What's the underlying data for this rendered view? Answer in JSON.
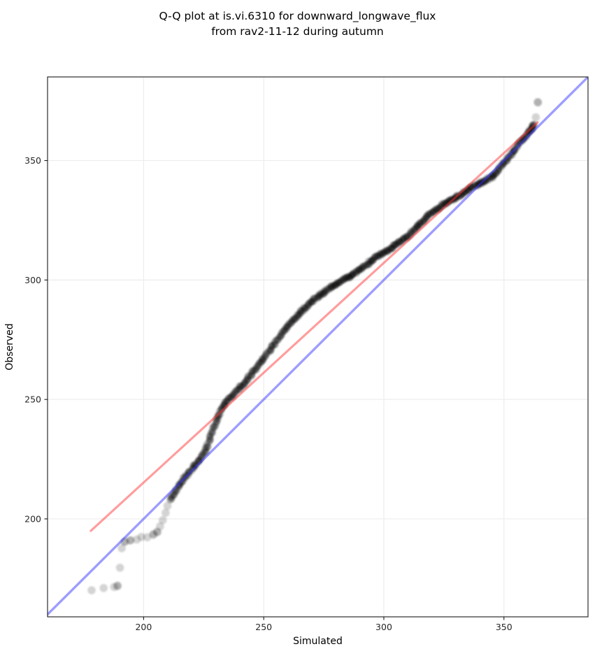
{
  "title": {
    "line1": "Q-Q plot at is.vi.6310 for downward_longwave_flux",
    "line2": "from rav2-11-12 during autumn"
  },
  "chart_data": {
    "type": "scatter",
    "title": "Q-Q plot at is.vi.6310 for downward_longwave_flux from rav2-11-12 during autumn",
    "xlabel": "Simulated",
    "ylabel": "Observed",
    "xlim": [
      160,
      385
    ],
    "ylim": [
      159,
      385
    ],
    "xticks": [
      200,
      250,
      300,
      350
    ],
    "yticks": [
      200,
      250,
      300,
      350
    ],
    "grid": true,
    "grid_color": "#ededed",
    "background": "#ffffff",
    "spine_color": "#1a1a1a",
    "point_color": "#000000",
    "series": [
      {
        "name": "qq-quantiles-dense",
        "marker": "circle",
        "alpha": 0.25,
        "points": [
          [
            211,
            208
          ],
          [
            213,
            211
          ],
          [
            215,
            214
          ],
          [
            217,
            217
          ],
          [
            219,
            219.5
          ],
          [
            221,
            222
          ],
          [
            223,
            224.5
          ],
          [
            225,
            227.5
          ],
          [
            226.5,
            230.5
          ],
          [
            228,
            235
          ],
          [
            229.5,
            239
          ],
          [
            231,
            242.5
          ],
          [
            232.5,
            246
          ],
          [
            234,
            248.5
          ],
          [
            236,
            250.5
          ],
          [
            238,
            253
          ],
          [
            240,
            255
          ],
          [
            242,
            257
          ],
          [
            244,
            259.5
          ],
          [
            246,
            262
          ],
          [
            248,
            264.5
          ],
          [
            250,
            267
          ],
          [
            252,
            270
          ],
          [
            254,
            272.5
          ],
          [
            256,
            275.5
          ],
          [
            258,
            278.5
          ],
          [
            260,
            281
          ],
          [
            262,
            283
          ],
          [
            264,
            285
          ],
          [
            266,
            287
          ],
          [
            268,
            289
          ],
          [
            270,
            291
          ],
          [
            272,
            292.5
          ],
          [
            274,
            294
          ],
          [
            276,
            295.5
          ],
          [
            278,
            297
          ],
          [
            280,
            298
          ],
          [
            282,
            299.5
          ],
          [
            284,
            300.5
          ],
          [
            286,
            301.5
          ],
          [
            288,
            303
          ],
          [
            290,
            304.5
          ],
          [
            292,
            306
          ],
          [
            294,
            307.5
          ],
          [
            296,
            309
          ],
          [
            298,
            310.5
          ],
          [
            300,
            311.5
          ],
          [
            302,
            312.5
          ],
          [
            304,
            314
          ],
          [
            306,
            315.5
          ],
          [
            308,
            317
          ],
          [
            310,
            318.5
          ],
          [
            312,
            320.5
          ],
          [
            314,
            322.5
          ],
          [
            316,
            324.5
          ],
          [
            318,
            326.5
          ],
          [
            320,
            328
          ],
          [
            322,
            329.5
          ],
          [
            324,
            331
          ],
          [
            326,
            332.5
          ],
          [
            328,
            333.5
          ],
          [
            330,
            334.5
          ],
          [
            332,
            335.5
          ],
          [
            334,
            337
          ],
          [
            336,
            338.5
          ],
          [
            338,
            339.5
          ],
          [
            340,
            340.5
          ],
          [
            342,
            341.5
          ],
          [
            344,
            342.5
          ],
          [
            346,
            344
          ],
          [
            348,
            346.5
          ],
          [
            350,
            349
          ],
          [
            352,
            351.5
          ],
          [
            354,
            354
          ],
          [
            356,
            356.5
          ],
          [
            358,
            359
          ],
          [
            360,
            361.5
          ],
          [
            361.5,
            363.5
          ],
          [
            362.5,
            365
          ]
        ]
      },
      {
        "name": "qq-lower-tail",
        "marker": "circle",
        "alpha": 0.17,
        "points": [
          [
            178.5,
            170,
            1
          ],
          [
            183.5,
            171,
            1
          ],
          [
            187.5,
            171.5,
            1
          ],
          [
            189,
            172,
            2
          ],
          [
            190,
            179.5,
            1
          ],
          [
            191,
            187.5,
            1
          ],
          [
            192,
            190.5,
            2
          ],
          [
            194.5,
            191,
            2
          ],
          [
            197,
            191.5,
            1
          ],
          [
            199,
            192.5,
            1
          ],
          [
            201.5,
            192.5,
            1
          ],
          [
            204,
            193.5,
            2
          ],
          [
            205.5,
            194.5,
            2
          ],
          [
            207,
            197,
            1
          ],
          [
            208,
            199.5,
            1
          ],
          [
            209,
            202.5,
            1
          ],
          [
            210,
            205.5,
            1
          ]
        ]
      },
      {
        "name": "qq-upper-outliers",
        "marker": "circle",
        "alpha": 0.17,
        "points": [
          [
            363.5,
            368,
            1
          ],
          [
            364,
            374.5,
            2
          ]
        ]
      }
    ],
    "lines": [
      {
        "name": "identity-line",
        "color": "#3333ff",
        "alpha": 0.48,
        "width": 3.4,
        "x1": 160,
        "y1": 160,
        "x2": 385,
        "y2": 385
      },
      {
        "name": "fit-line",
        "color": "#ff3333",
        "alpha": 0.48,
        "width": 3.2,
        "x1": 178,
        "y1": 195,
        "x2": 364,
        "y2": 366
      }
    ]
  }
}
